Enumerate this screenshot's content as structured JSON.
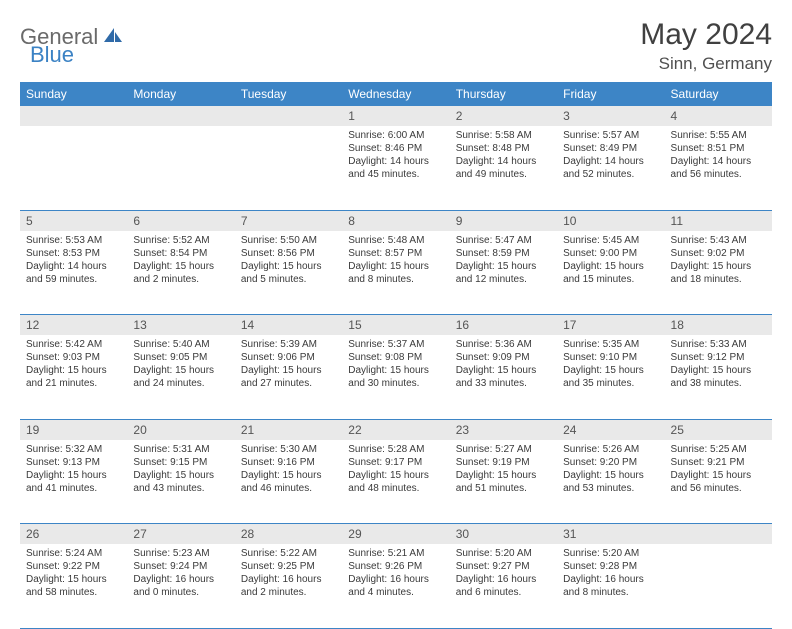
{
  "brand": {
    "part1": "General",
    "part2": "Blue"
  },
  "title": "May 2024",
  "location": "Sinn, Germany",
  "colors": {
    "header_bg": "#3d85c6",
    "header_text": "#ffffff",
    "daynum_bg": "#e9e9e9",
    "rule": "#3d85c6",
    "logo_gray": "#6a6a6a",
    "logo_blue": "#3b82c4",
    "title_color": "#404040"
  },
  "weekdays": [
    "Sunday",
    "Monday",
    "Tuesday",
    "Wednesday",
    "Thursday",
    "Friday",
    "Saturday"
  ],
  "weeks": [
    [
      null,
      null,
      null,
      {
        "n": "1",
        "sunrise": "6:00 AM",
        "sunset": "8:46 PM",
        "daylight": "14 hours and 45 minutes."
      },
      {
        "n": "2",
        "sunrise": "5:58 AM",
        "sunset": "8:48 PM",
        "daylight": "14 hours and 49 minutes."
      },
      {
        "n": "3",
        "sunrise": "5:57 AM",
        "sunset": "8:49 PM",
        "daylight": "14 hours and 52 minutes."
      },
      {
        "n": "4",
        "sunrise": "5:55 AM",
        "sunset": "8:51 PM",
        "daylight": "14 hours and 56 minutes."
      }
    ],
    [
      {
        "n": "5",
        "sunrise": "5:53 AM",
        "sunset": "8:53 PM",
        "daylight": "14 hours and 59 minutes."
      },
      {
        "n": "6",
        "sunrise": "5:52 AM",
        "sunset": "8:54 PM",
        "daylight": "15 hours and 2 minutes."
      },
      {
        "n": "7",
        "sunrise": "5:50 AM",
        "sunset": "8:56 PM",
        "daylight": "15 hours and 5 minutes."
      },
      {
        "n": "8",
        "sunrise": "5:48 AM",
        "sunset": "8:57 PM",
        "daylight": "15 hours and 8 minutes."
      },
      {
        "n": "9",
        "sunrise": "5:47 AM",
        "sunset": "8:59 PM",
        "daylight": "15 hours and 12 minutes."
      },
      {
        "n": "10",
        "sunrise": "5:45 AM",
        "sunset": "9:00 PM",
        "daylight": "15 hours and 15 minutes."
      },
      {
        "n": "11",
        "sunrise": "5:43 AM",
        "sunset": "9:02 PM",
        "daylight": "15 hours and 18 minutes."
      }
    ],
    [
      {
        "n": "12",
        "sunrise": "5:42 AM",
        "sunset": "9:03 PM",
        "daylight": "15 hours and 21 minutes."
      },
      {
        "n": "13",
        "sunrise": "5:40 AM",
        "sunset": "9:05 PM",
        "daylight": "15 hours and 24 minutes."
      },
      {
        "n": "14",
        "sunrise": "5:39 AM",
        "sunset": "9:06 PM",
        "daylight": "15 hours and 27 minutes."
      },
      {
        "n": "15",
        "sunrise": "5:37 AM",
        "sunset": "9:08 PM",
        "daylight": "15 hours and 30 minutes."
      },
      {
        "n": "16",
        "sunrise": "5:36 AM",
        "sunset": "9:09 PM",
        "daylight": "15 hours and 33 minutes."
      },
      {
        "n": "17",
        "sunrise": "5:35 AM",
        "sunset": "9:10 PM",
        "daylight": "15 hours and 35 minutes."
      },
      {
        "n": "18",
        "sunrise": "5:33 AM",
        "sunset": "9:12 PM",
        "daylight": "15 hours and 38 minutes."
      }
    ],
    [
      {
        "n": "19",
        "sunrise": "5:32 AM",
        "sunset": "9:13 PM",
        "daylight": "15 hours and 41 minutes."
      },
      {
        "n": "20",
        "sunrise": "5:31 AM",
        "sunset": "9:15 PM",
        "daylight": "15 hours and 43 minutes."
      },
      {
        "n": "21",
        "sunrise": "5:30 AM",
        "sunset": "9:16 PM",
        "daylight": "15 hours and 46 minutes."
      },
      {
        "n": "22",
        "sunrise": "5:28 AM",
        "sunset": "9:17 PM",
        "daylight": "15 hours and 48 minutes."
      },
      {
        "n": "23",
        "sunrise": "5:27 AM",
        "sunset": "9:19 PM",
        "daylight": "15 hours and 51 minutes."
      },
      {
        "n": "24",
        "sunrise": "5:26 AM",
        "sunset": "9:20 PM",
        "daylight": "15 hours and 53 minutes."
      },
      {
        "n": "25",
        "sunrise": "5:25 AM",
        "sunset": "9:21 PM",
        "daylight": "15 hours and 56 minutes."
      }
    ],
    [
      {
        "n": "26",
        "sunrise": "5:24 AM",
        "sunset": "9:22 PM",
        "daylight": "15 hours and 58 minutes."
      },
      {
        "n": "27",
        "sunrise": "5:23 AM",
        "sunset": "9:24 PM",
        "daylight": "16 hours and 0 minutes."
      },
      {
        "n": "28",
        "sunrise": "5:22 AM",
        "sunset": "9:25 PM",
        "daylight": "16 hours and 2 minutes."
      },
      {
        "n": "29",
        "sunrise": "5:21 AM",
        "sunset": "9:26 PM",
        "daylight": "16 hours and 4 minutes."
      },
      {
        "n": "30",
        "sunrise": "5:20 AM",
        "sunset": "9:27 PM",
        "daylight": "16 hours and 6 minutes."
      },
      {
        "n": "31",
        "sunrise": "5:20 AM",
        "sunset": "9:28 PM",
        "daylight": "16 hours and 8 minutes."
      },
      null
    ]
  ],
  "labels": {
    "sunrise": "Sunrise:",
    "sunset": "Sunset:",
    "daylight": "Daylight:"
  }
}
